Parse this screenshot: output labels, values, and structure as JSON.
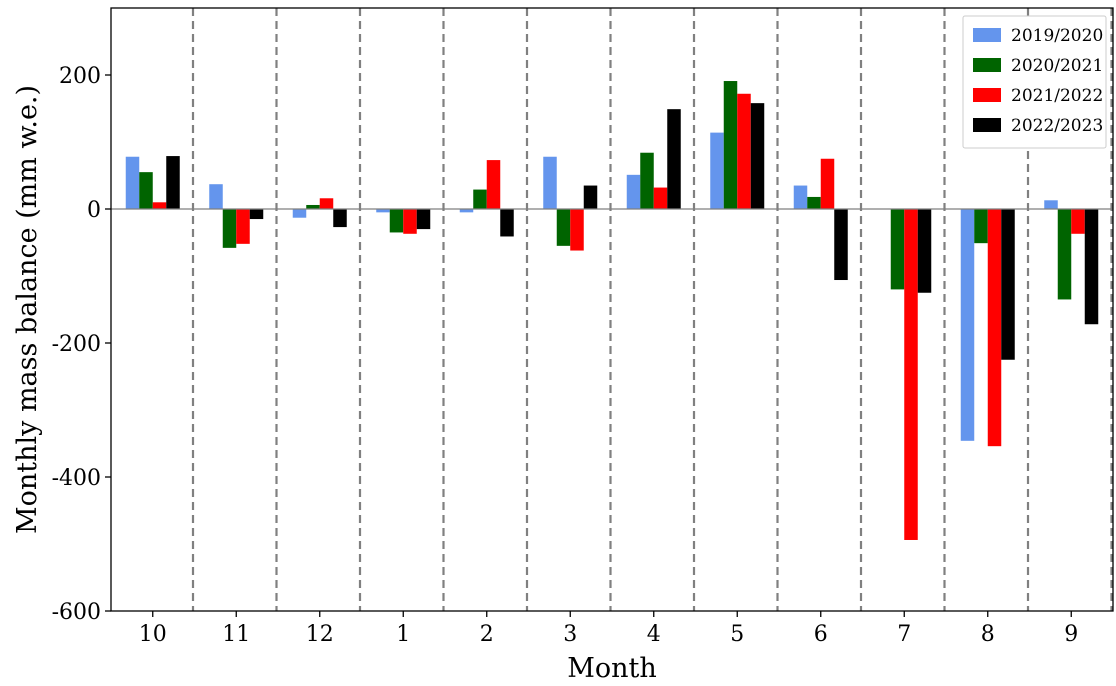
{
  "chart_data": {
    "type": "bar",
    "title": "",
    "xlabel": "Month",
    "ylabel": "Monthly mass balance (mm w.e.)",
    "categories": [
      "10",
      "11",
      "12",
      "1",
      "2",
      "3",
      "4",
      "5",
      "6",
      "7",
      "8",
      "9"
    ],
    "ylim": [
      -600,
      300
    ],
    "yticks": [
      {
        "value": -600,
        "label": "-600"
      },
      {
        "value": -400,
        "label": "-400"
      },
      {
        "value": -200,
        "label": "-200"
      },
      {
        "value": 0,
        "label": "0"
      },
      {
        "value": 200,
        "label": "200"
      }
    ],
    "series": [
      {
        "name": "2019/2020",
        "color": "#6495ED",
        "values": [
          78,
          37,
          -13,
          -5,
          -5,
          78,
          51,
          114,
          35,
          0,
          -346,
          13
        ]
      },
      {
        "name": "2020/2021",
        "color": "#006400",
        "values": [
          55,
          -58,
          6,
          -35,
          29,
          -55,
          84,
          191,
          18,
          -120,
          -51,
          -135
        ]
      },
      {
        "name": "2021/2022",
        "color": "#FF0000",
        "values": [
          10,
          -52,
          16,
          -37,
          73,
          -62,
          32,
          172,
          75,
          -494,
          -354,
          -37
        ]
      },
      {
        "name": "2022/2023",
        "color": "#000000",
        "values": [
          79,
          -15,
          -27,
          -30,
          -41,
          35,
          149,
          158,
          -106,
          -125,
          -225,
          -172
        ]
      }
    ],
    "zero_line": true,
    "month_separators": true,
    "grid": false,
    "legend_position": "top-right"
  }
}
